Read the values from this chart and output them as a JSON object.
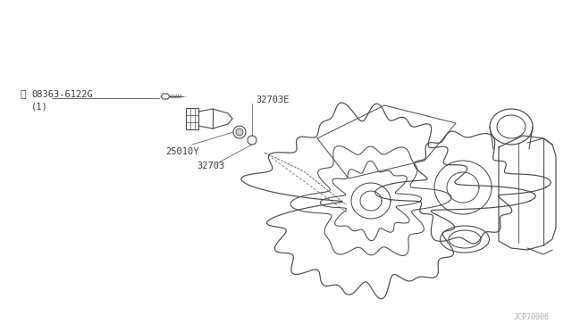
{
  "bg_color": "#ffffff",
  "line_color": "#4a4a4a",
  "fig_width": 6.4,
  "fig_height": 3.72,
  "dpi": 100,
  "text_color": "#3a3a3a",
  "labels": {
    "part1_line1": "Ⓢ 08363-6122G",
    "part1_line2": "   (1)",
    "part2": "32703E",
    "part3": "25010Y",
    "part4": "32703",
    "watermark": "JCP70006"
  }
}
